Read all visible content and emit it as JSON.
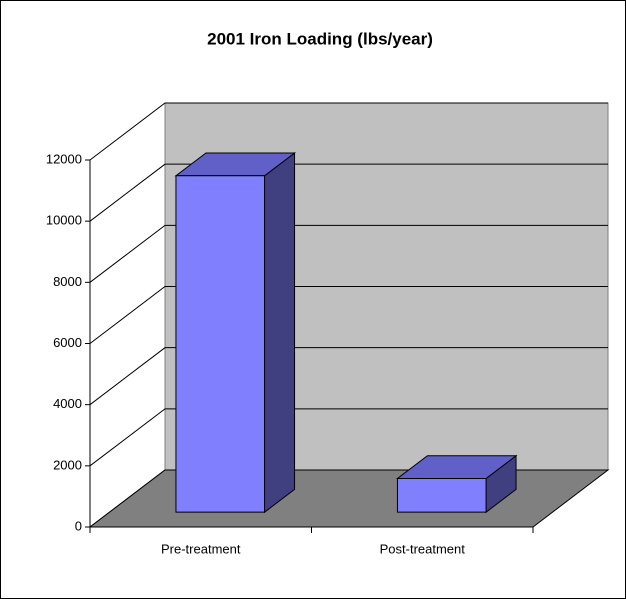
{
  "chart_data": {
    "type": "bar3d",
    "title": "2001 Iron Loading (lbs/year)",
    "categories": [
      "Pre-treatment",
      "Post-treatment"
    ],
    "values": [
      11000,
      1100
    ],
    "color": "#8080ff",
    "ylim": [
      0,
      12000
    ],
    "yticks": [
      0,
      2000,
      4000,
      6000,
      8000,
      10000,
      12000
    ],
    "grid": true
  }
}
